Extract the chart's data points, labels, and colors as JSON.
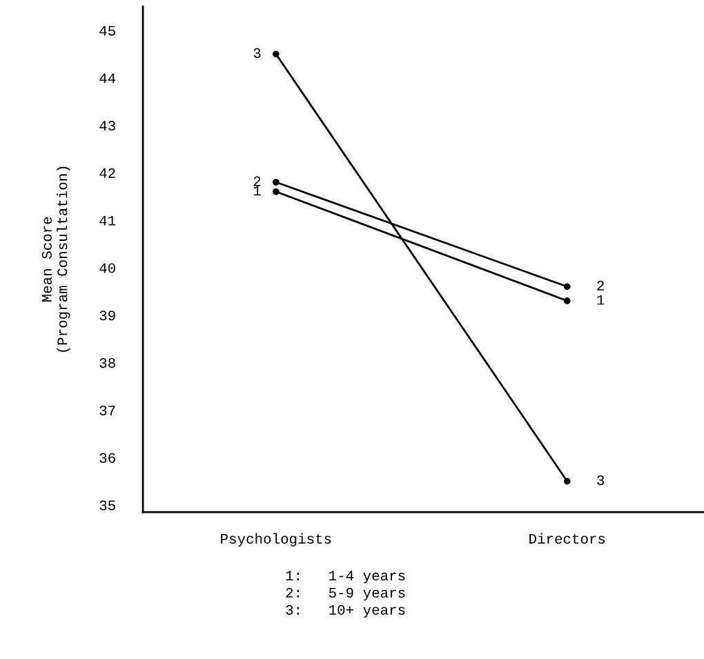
{
  "chart_data": {
    "type": "line",
    "ylabel": "Mean Score\n(Program Consultation)",
    "categories": [
      "Psychologists",
      "Directors"
    ],
    "series": [
      {
        "name": "1",
        "color": "#000000",
        "values": [
          41.6,
          39.3
        ]
      },
      {
        "name": "2",
        "color": "#000000",
        "values": [
          41.8,
          39.6
        ]
      },
      {
        "name": "3",
        "color": "#000000",
        "values": [
          44.5,
          35.5
        ]
      }
    ],
    "marker": "circle",
    "line_style": "solid",
    "ylim": [
      34.85,
      45.5
    ],
    "yticks": [
      35,
      36,
      37,
      38,
      39,
      40,
      41,
      42,
      43,
      44,
      45
    ],
    "annotations": [
      "1:   1-4 years",
      "2:   5-9 years",
      "3:   10+ years"
    ]
  }
}
